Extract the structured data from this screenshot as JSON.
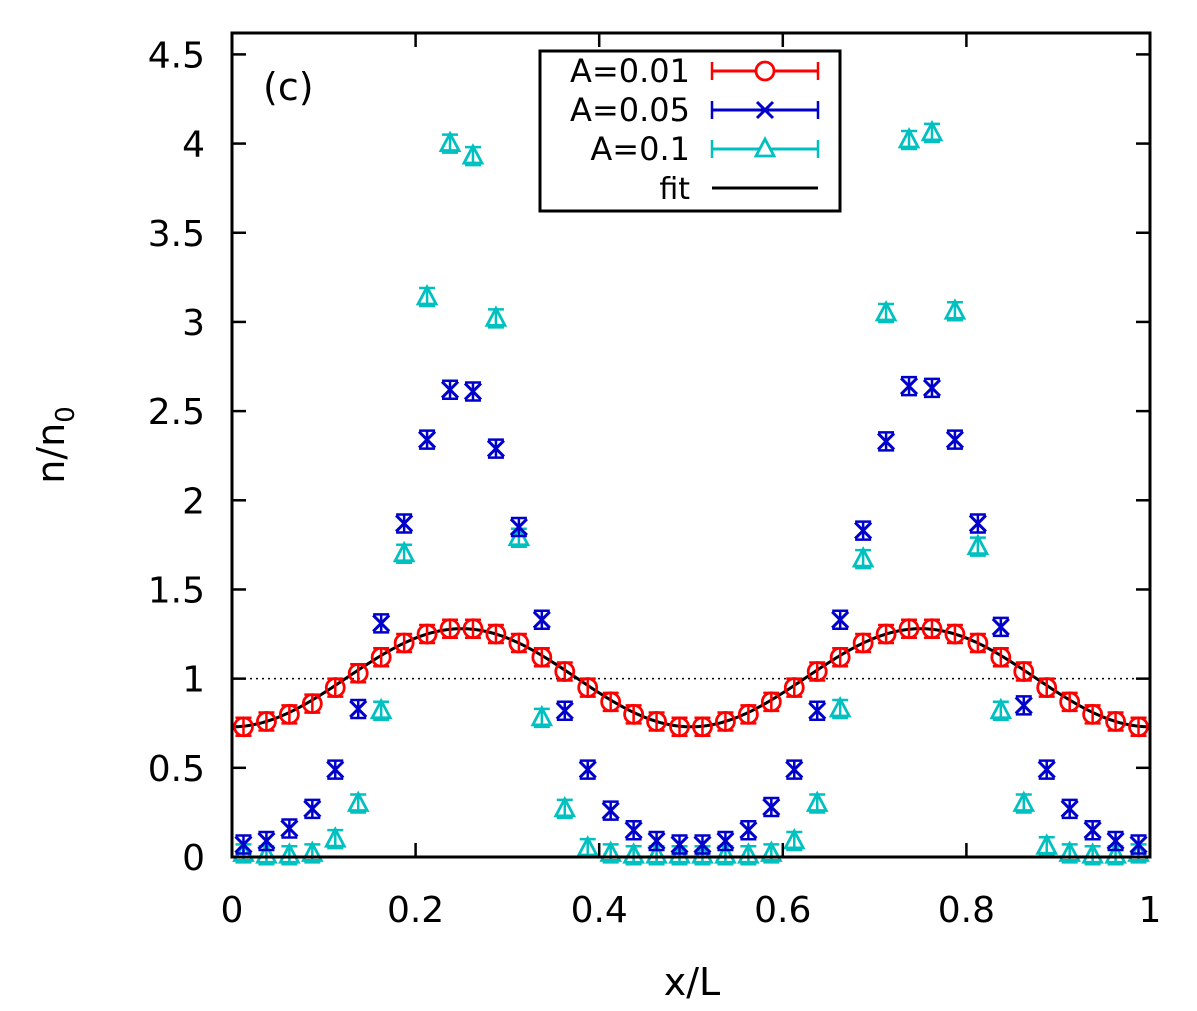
{
  "chart_data": {
    "type": "scatter",
    "panel_label": "(c)",
    "xlabel": "x/L",
    "ylabel_main": "n/n",
    "ylabel_sub": "0",
    "xlim": [
      0,
      1
    ],
    "ylim": [
      0,
      4.62
    ],
    "x_ticks": [
      0,
      0.2,
      0.4,
      0.6,
      0.8,
      1
    ],
    "x_tick_labels": [
      "0",
      "0.2",
      "0.4",
      "0.6",
      "0.8",
      "1"
    ],
    "y_ticks": [
      0,
      0.5,
      1,
      1.5,
      2,
      2.5,
      3,
      3.5,
      4,
      4.5
    ],
    "y_tick_labels": [
      "0",
      "0.5",
      "1",
      "1.5",
      "2",
      "2.5",
      "3",
      "3.5",
      "4",
      "4.5"
    ],
    "reference_line": 1,
    "legend_position": "top-center",
    "x": [
      0.0125,
      0.0375,
      0.0625,
      0.0875,
      0.1125,
      0.1375,
      0.1625,
      0.1875,
      0.2125,
      0.2375,
      0.2625,
      0.2875,
      0.3125,
      0.3375,
      0.3625,
      0.3875,
      0.4125,
      0.4375,
      0.4625,
      0.4875,
      0.5125,
      0.5375,
      0.5625,
      0.5875,
      0.6125,
      0.6375,
      0.6625,
      0.6875,
      0.7125,
      0.7375,
      0.7625,
      0.7875,
      0.8125,
      0.8375,
      0.8625,
      0.8875,
      0.9125,
      0.9375,
      0.9625,
      0.9875
    ],
    "series": [
      {
        "name": "A=0.01",
        "marker": "circle",
        "color": "#ff0000",
        "values": [
          0.73,
          0.76,
          0.8,
          0.86,
          0.95,
          1.03,
          1.12,
          1.2,
          1.25,
          1.28,
          1.28,
          1.25,
          1.2,
          1.12,
          1.04,
          0.95,
          0.87,
          0.8,
          0.76,
          0.73,
          0.73,
          0.76,
          0.8,
          0.87,
          0.95,
          1.04,
          1.12,
          1.2,
          1.25,
          1.28,
          1.28,
          1.25,
          1.2,
          1.12,
          1.04,
          0.95,
          0.87,
          0.8,
          0.76,
          0.73
        ]
      },
      {
        "name": "A=0.05",
        "marker": "cross",
        "color": "#0000cc",
        "values": [
          0.07,
          0.09,
          0.16,
          0.27,
          0.49,
          0.83,
          1.31,
          1.87,
          2.34,
          2.62,
          2.61,
          2.29,
          1.85,
          1.33,
          0.82,
          0.49,
          0.26,
          0.15,
          0.09,
          0.07,
          0.07,
          0.09,
          0.15,
          0.28,
          0.49,
          0.82,
          1.33,
          1.83,
          2.33,
          2.64,
          2.63,
          2.34,
          1.87,
          1.29,
          0.85,
          0.49,
          0.27,
          0.15,
          0.09,
          0.07
        ]
      },
      {
        "name": "A=0.1",
        "marker": "triangle",
        "color": "#00c0c0",
        "values": [
          0.02,
          0.01,
          0.01,
          0.02,
          0.1,
          0.3,
          0.82,
          1.7,
          3.14,
          4.0,
          3.93,
          3.02,
          1.79,
          0.78,
          0.27,
          0.05,
          0.02,
          0.01,
          0.01,
          0.01,
          0.01,
          0.01,
          0.01,
          0.02,
          0.09,
          0.3,
          0.83,
          1.67,
          3.05,
          4.02,
          4.06,
          3.06,
          1.74,
          0.82,
          0.3,
          0.06,
          0.02,
          0.01,
          0.01,
          0.02
        ]
      }
    ],
    "fit": {
      "name": "fit",
      "color": "#000000",
      "mean": 1.005,
      "amplitude": 0.275,
      "periods": 2
    }
  }
}
